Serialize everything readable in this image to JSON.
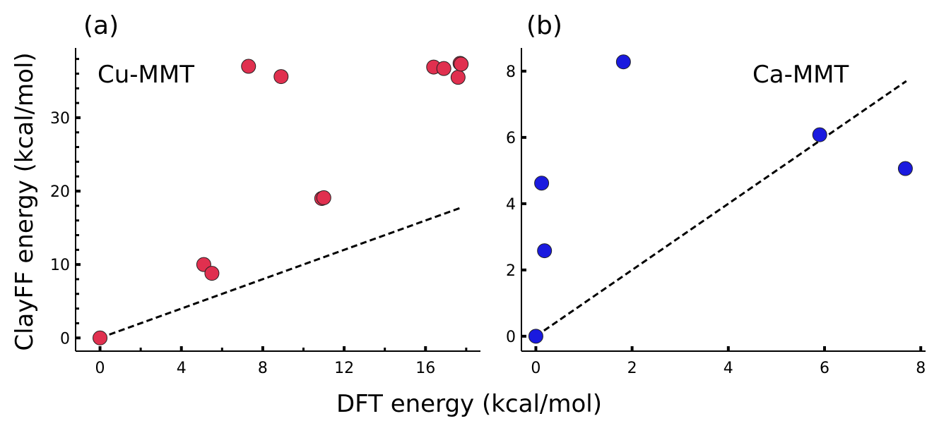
{
  "figure": {
    "xlabel": "DFT energy (kcal/mol)",
    "ylabel": "ClayFF energy (kcal/mol)"
  },
  "chart_data": [
    {
      "type": "scatter",
      "panel_label": "(a)",
      "annotation": "Cu-MMT",
      "xlim": [
        -1.2,
        18.7
      ],
      "ylim": [
        -1.8,
        39.5
      ],
      "xticks": [
        0,
        4,
        8,
        12,
        16
      ],
      "xtick_labels": [
        "0",
        "4",
        "8",
        "12",
        "16"
      ],
      "yticks": [
        0,
        10,
        20,
        30
      ],
      "ytick_labels": [
        "0",
        "10",
        "20",
        "30"
      ],
      "grid": false,
      "marker_color": "#e0304f",
      "points": [
        {
          "x": 0.0,
          "y": 0.0
        },
        {
          "x": 5.1,
          "y": 10.0
        },
        {
          "x": 5.5,
          "y": 8.8
        },
        {
          "x": 7.3,
          "y": 37.0
        },
        {
          "x": 8.9,
          "y": 35.6
        },
        {
          "x": 10.9,
          "y": 19.0
        },
        {
          "x": 11.0,
          "y": 19.1
        },
        {
          "x": 16.4,
          "y": 36.9
        },
        {
          "x": 16.9,
          "y": 36.7
        },
        {
          "x": 17.6,
          "y": 35.5
        },
        {
          "x": 17.7,
          "y": 37.4
        },
        {
          "x": 17.75,
          "y": 37.3
        }
      ],
      "line": {
        "style": "dashed",
        "x": [
          0,
          17.7
        ],
        "y": [
          0,
          17.7
        ]
      }
    },
    {
      "type": "scatter",
      "panel_label": "(b)",
      "annotation": "Ca-MMT",
      "xlim": [
        -0.3,
        8.1
      ],
      "ylim": [
        -0.45,
        8.7
      ],
      "xticks": [
        0,
        2,
        4,
        6,
        8
      ],
      "xtick_labels": [
        "0",
        "2",
        "4",
        "6",
        "8"
      ],
      "yticks": [
        0,
        2,
        4,
        6,
        8
      ],
      "ytick_labels": [
        "0",
        "2",
        "4",
        "6",
        "8"
      ],
      "grid": false,
      "marker_color": "#1a1adf",
      "points": [
        {
          "x": 0.0,
          "y": 0.0
        },
        {
          "x": 0.12,
          "y": 4.62
        },
        {
          "x": 0.18,
          "y": 2.58
        },
        {
          "x": 1.82,
          "y": 8.28
        },
        {
          "x": 5.9,
          "y": 6.08
        },
        {
          "x": 7.68,
          "y": 5.06
        }
      ],
      "line": {
        "style": "dashed",
        "x": [
          0,
          7.7
        ],
        "y": [
          0,
          7.7
        ]
      }
    }
  ]
}
